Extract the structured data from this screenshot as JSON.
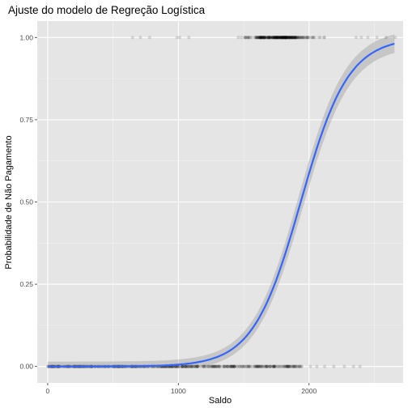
{
  "chart_data": {
    "type": "scatter",
    "title": "Ajuste do modelo de Regreção Logística",
    "xlabel": "Saldo",
    "ylabel": "Probabilidade de Não Pagamento",
    "xlim": [
      -80,
      2720
    ],
    "ylim": [
      -0.05,
      1.05
    ],
    "x_ticks": [
      0,
      1000,
      2000
    ],
    "x_tick_labels": [
      "0",
      "1000",
      "2000"
    ],
    "y_ticks": [
      0,
      0.25,
      0.5,
      0.75,
      1.0
    ],
    "y_tick_labels": [
      "0.00",
      "0.25",
      "0.50",
      "0.75",
      "1.00"
    ],
    "grid": true,
    "background": "#e5e5e5",
    "colors": {
      "points": "#000000",
      "fit_line": "#3366ff",
      "ribbon": "#999999",
      "grid": "#ffffff"
    },
    "series": [
      {
        "kind": "points",
        "y": 1,
        "x_range": [
          650,
          2660
        ],
        "dense_range": [
          1250,
          2300
        ],
        "sparse_x": [
          650,
          710,
          780,
          990,
          1010,
          1080,
          2360,
          2400,
          2450,
          2520,
          2590,
          2660
        ],
        "count": 333
      },
      {
        "kind": "points",
        "y": 0,
        "x_range": [
          0,
          2390
        ],
        "dense_range": [
          0,
          1950
        ],
        "sparse_x": [
          2010,
          2060,
          2120,
          2190,
          2270,
          2340,
          2390
        ],
        "count": 9667
      },
      {
        "kind": "logistic_fit",
        "intercept": -10.65,
        "slope": 0.0055,
        "x_range": [
          0,
          2654
        ],
        "ribbon": true
      }
    ]
  }
}
